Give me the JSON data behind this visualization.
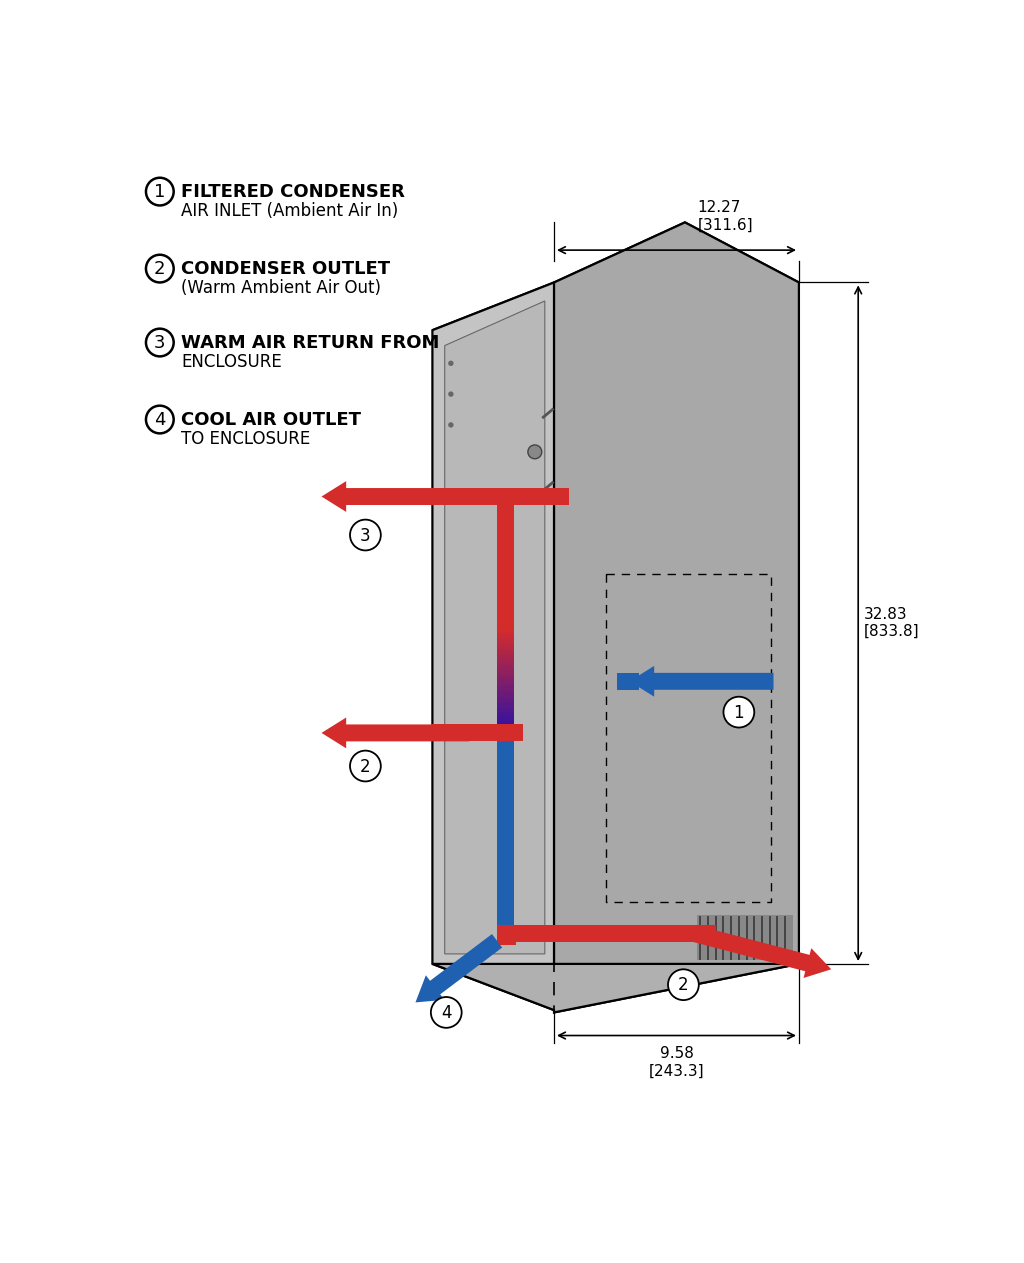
{
  "background_color": "#ffffff",
  "legend_items": [
    {
      "num": "1",
      "text1": "FILTERED CONDENSER",
      "text2": "AIR INLET (Ambient Air In)"
    },
    {
      "num": "2",
      "text1": "CONDENSER OUTLET",
      "text2": "(Warm Ambient Air Out)"
    },
    {
      "num": "3",
      "text1": "WARM AIR RETURN FROM",
      "text2": "ENCLOSURE"
    },
    {
      "num": "4",
      "text1": "COOL AIR OUTLET",
      "text2": "TO ENCLOSURE"
    }
  ],
  "dim_width": "12.27\n[311.6]",
  "dim_height": "32.83\n[833.8]",
  "dim_depth": "9.58\n[243.3]",
  "red_color": "#d42b2b",
  "blue_color": "#2060b0",
  "cab_top": "#d0d0d0",
  "cab_left": "#c4c4c4",
  "cab_right": "#a8a8a8",
  "cab_bottom": "#b0b0b0",
  "cab_inner": "#b8b8b8"
}
